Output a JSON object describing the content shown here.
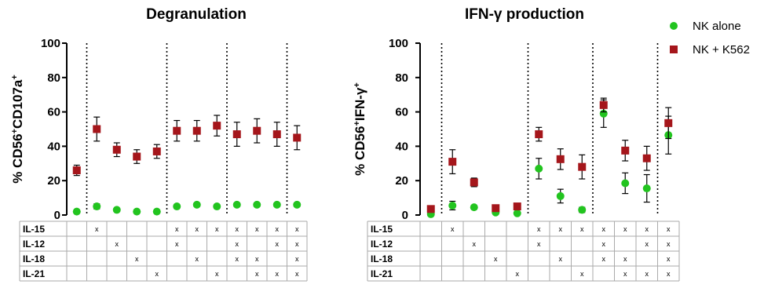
{
  "legend": {
    "items": [
      {
        "label": "NK alone",
        "color": "#22c41f",
        "marker": "circle"
      },
      {
        "label": "NK + K562",
        "color": "#a5161b",
        "marker": "square"
      }
    ]
  },
  "condition_table": {
    "rows": [
      "IL-15",
      "IL-12",
      "IL-18",
      "IL-21"
    ],
    "conditions": [
      [],
      [
        "IL-15"
      ],
      [
        "IL-12"
      ],
      [
        "IL-18"
      ],
      [
        "IL-21"
      ],
      [
        "IL-15",
        "IL-12"
      ],
      [
        "IL-15",
        "IL-18"
      ],
      [
        "IL-15",
        "IL-21"
      ],
      [
        "IL-15",
        "IL-12",
        "IL-18"
      ],
      [
        "IL-15",
        "IL-18",
        "IL-21"
      ],
      [
        "IL-15",
        "IL-12",
        "IL-21"
      ],
      [
        "IL-15",
        "IL-12",
        "IL-18",
        "IL-21"
      ]
    ],
    "mark": "x"
  },
  "chart_data": [
    {
      "type": "scatter",
      "title": "Degranulation",
      "ylabel": "% CD56+CD107a+",
      "ylabel_parts": {
        "main": "% CD56",
        "sup1": "+",
        "mid": "CD107a",
        "sup2": "+"
      },
      "ylim": [
        0,
        100
      ],
      "yticks": [
        0,
        20,
        40,
        60,
        80,
        100
      ],
      "group_separators_after": [
        1,
        5,
        8,
        11
      ],
      "series": [
        {
          "name": "NK alone",
          "color": "#22c41f",
          "marker": "circle",
          "values": [
            2,
            5,
            3,
            2,
            2,
            5,
            6,
            5,
            6,
            6,
            6,
            6
          ],
          "errors": [
            0.5,
            1.5,
            0.8,
            0.5,
            0.5,
            1,
            1,
            1,
            1,
            1,
            1,
            1
          ]
        },
        {
          "name": "NK + K562",
          "color": "#a5161b",
          "marker": "square",
          "values": [
            26,
            50,
            38,
            34,
            37,
            49,
            49,
            52,
            47,
            49,
            47,
            45
          ],
          "errors": [
            3,
            7,
            4,
            4,
            4,
            6,
            6,
            6,
            7,
            7,
            7,
            7
          ]
        }
      ]
    },
    {
      "type": "scatter",
      "title": "IFN-γ production",
      "ylabel": "% CD56+IFN-γ+",
      "ylabel_parts": {
        "main": "% CD56",
        "sup1": "+",
        "mid": "IFN-γ",
        "sup2": "+"
      },
      "ylim": [
        0,
        100
      ],
      "yticks": [
        0,
        20,
        40,
        60,
        80,
        100
      ],
      "group_separators_after": [
        1,
        5,
        8,
        11
      ],
      "series": [
        {
          "name": "NK alone",
          "color": "#22c41f",
          "marker": "circle",
          "values": [
            0.5,
            5.5,
            4.5,
            1.5,
            1,
            27,
            11,
            3,
            59,
            18.5,
            15.5,
            46.5
          ],
          "errors": [
            0.3,
            2.5,
            1,
            0.5,
            0.5,
            6,
            4,
            1.5,
            8,
            6,
            8,
            11
          ]
        },
        {
          "name": "NK + K562",
          "color": "#a5161b",
          "marker": "square",
          "values": [
            3.5,
            31,
            19,
            4,
            5,
            47,
            32.5,
            28,
            64,
            37.5,
            33,
            53.5
          ],
          "errors": [
            1,
            7,
            2.5,
            1,
            1,
            4,
            6,
            7,
            4,
            6,
            7,
            9
          ]
        }
      ]
    }
  ]
}
